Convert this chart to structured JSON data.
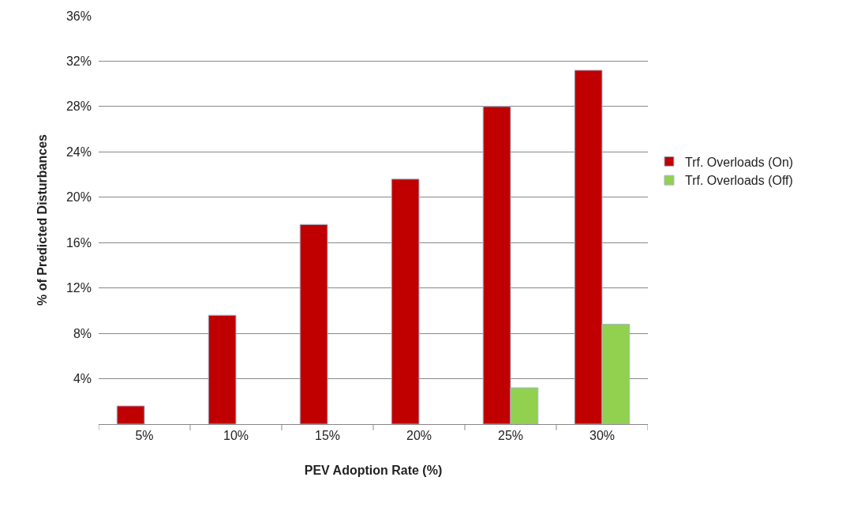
{
  "chart_data": {
    "type": "bar",
    "xlabel": "PEV Adoption Rate (%)",
    "ylabel": "% of Predicted Disturbances",
    "categories": [
      "5%",
      "10%",
      "15%",
      "20%",
      "25%",
      "30%"
    ],
    "series": [
      {
        "name": "Trf. Overloads (On)",
        "color": "#c00000",
        "values": [
          1.6,
          9.6,
          17.6,
          21.6,
          28.0,
          31.2
        ]
      },
      {
        "name": "Trf. Overloads (Off)",
        "color": "#92d050",
        "values": [
          null,
          null,
          null,
          null,
          3.2,
          8.8
        ]
      }
    ],
    "ylim": [
      0,
      36
    ],
    "yticks": [
      {
        "value": 0,
        "label": null
      },
      {
        "value": 4,
        "label": "4%"
      },
      {
        "value": 8,
        "label": "8%"
      },
      {
        "value": 12,
        "label": "12%"
      },
      {
        "value": 16,
        "label": "16%"
      },
      {
        "value": 20,
        "label": "20%"
      },
      {
        "value": 24,
        "label": "24%"
      },
      {
        "value": 28,
        "label": "28%"
      },
      {
        "value": 32,
        "label": "32%"
      },
      {
        "value": 36,
        "label": "36%"
      }
    ],
    "grid": "y",
    "legend": "right"
  }
}
